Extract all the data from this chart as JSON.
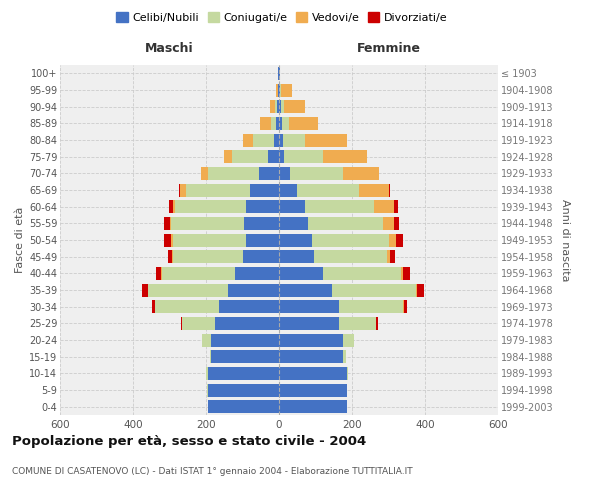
{
  "age_groups": [
    "0-4",
    "5-9",
    "10-14",
    "15-19",
    "20-24",
    "25-29",
    "30-34",
    "35-39",
    "40-44",
    "45-49",
    "50-54",
    "55-59",
    "60-64",
    "65-69",
    "70-74",
    "75-79",
    "80-84",
    "85-89",
    "90-94",
    "95-99",
    "100+"
  ],
  "birth_years": [
    "1999-2003",
    "1994-1998",
    "1989-1993",
    "1984-1988",
    "1979-1983",
    "1974-1978",
    "1969-1973",
    "1964-1968",
    "1959-1963",
    "1954-1958",
    "1949-1953",
    "1944-1948",
    "1939-1943",
    "1934-1938",
    "1929-1933",
    "1924-1928",
    "1919-1923",
    "1914-1918",
    "1909-1913",
    "1904-1908",
    "≤ 1903"
  ],
  "colors": {
    "celibe": "#4472C4",
    "coniugato": "#C5D9A0",
    "vedovo": "#F0AC50",
    "divorziato": "#CC0000"
  },
  "maschi": {
    "celibe": [
      195,
      195,
      195,
      185,
      185,
      175,
      165,
      140,
      120,
      100,
      90,
      95,
      90,
      80,
      55,
      30,
      15,
      8,
      5,
      3,
      2
    ],
    "coniugato": [
      0,
      2,
      5,
      5,
      25,
      90,
      175,
      220,
      200,
      190,
      200,
      200,
      195,
      175,
      140,
      100,
      55,
      15,
      5,
      0,
      0
    ],
    "vedovo": [
      0,
      0,
      0,
      0,
      0,
      0,
      0,
      0,
      2,
      3,
      5,
      5,
      5,
      15,
      20,
      20,
      30,
      30,
      15,
      5,
      0
    ],
    "divorziato": [
      0,
      0,
      0,
      0,
      0,
      3,
      8,
      15,
      15,
      10,
      20,
      15,
      10,
      5,
      0,
      0,
      0,
      0,
      0,
      0,
      0
    ]
  },
  "femmine": {
    "nubile": [
      185,
      185,
      185,
      175,
      175,
      165,
      165,
      145,
      120,
      95,
      90,
      80,
      70,
      50,
      30,
      15,
      10,
      8,
      5,
      3,
      2
    ],
    "coniugata": [
      0,
      2,
      5,
      8,
      30,
      100,
      175,
      230,
      215,
      200,
      210,
      205,
      190,
      170,
      145,
      105,
      60,
      20,
      10,
      3,
      0
    ],
    "vedova": [
      0,
      0,
      0,
      0,
      0,
      2,
      2,
      3,
      5,
      8,
      20,
      30,
      55,
      80,
      100,
      120,
      115,
      80,
      55,
      30,
      0
    ],
    "divorziata": [
      0,
      0,
      0,
      0,
      0,
      3,
      10,
      20,
      20,
      15,
      20,
      15,
      10,
      5,
      0,
      0,
      0,
      0,
      0,
      0,
      0
    ]
  },
  "xlim": 600,
  "title": "Popolazione per età, sesso e stato civile - 2004",
  "subtitle": "COMUNE DI CASATENOVO (LC) - Dati ISTAT 1° gennaio 2004 - Elaborazione TUTTITALIA.IT",
  "xlabel_left": "Maschi",
  "xlabel_right": "Femmine",
  "ylabel_left": "Fasce di età",
  "ylabel_right": "Anni di nascita",
  "legend_labels": [
    "Celibi/Nubili",
    "Coniugati/e",
    "Vedovi/e",
    "Divorziati/e"
  ],
  "bg_color": "#FFFFFF",
  "plot_bg": "#EFEFEF"
}
